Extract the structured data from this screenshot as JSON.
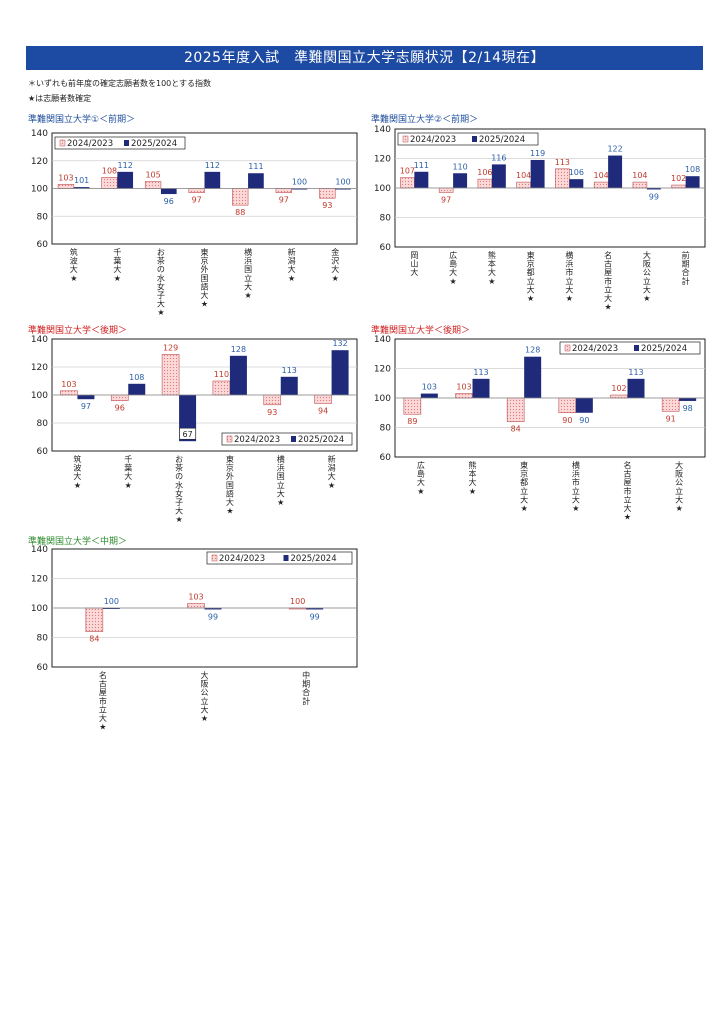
{
  "page": {
    "title": "2025年度入試　準難関国立大学志願状況【2/14現在】",
    "note1": "＊いずれも前年度の確定志願者数を100とする指数",
    "note2": "★は志願者数確定"
  },
  "colors": {
    "banner": "#1d4aa3",
    "series_2025": "#1f2a7a",
    "series_2024_fill": "#fbd9d9",
    "series_2024_dot": "#e07a7a",
    "label_2024": "#c0392b",
    "label_2025": "#2b5fa8",
    "title_blue": "#1f4e9c",
    "title_red": "#d02020",
    "title_green": "#2e8b2e"
  },
  "chart_data": [
    {
      "type": "bar",
      "title": "準難関国立大学①＜前期＞",
      "categories": [
        "筑波大★",
        "千葉大★",
        "お茶の水女子大★",
        "東京外国語大★",
        "横浜国立大★",
        "新潟大★",
        "金沢大★"
      ],
      "series": [
        {
          "name": "2024/2023",
          "values": [
            103,
            108,
            105,
            97,
            88,
            97,
            93
          ]
        },
        {
          "name": "2025/2024",
          "values": [
            101,
            112,
            96,
            112,
            111,
            100,
            100
          ]
        }
      ],
      "ylim": [
        60,
        140
      ],
      "yticks": [
        60,
        80,
        100,
        120,
        140
      ],
      "baseline": 100,
      "legend": "top-left"
    },
    {
      "type": "bar",
      "title": "準難関国立大学②＜前期＞",
      "categories": [
        "岡山大",
        "広島大★",
        "熊本大★",
        "東京都立大★",
        "横浜市立大★",
        "名古屋市立大★",
        "大阪公立大★",
        "前期合計"
      ],
      "series": [
        {
          "name": "2024/2023",
          "values": [
            107,
            97,
            106,
            104,
            113,
            104,
            104,
            102
          ]
        },
        {
          "name": "2025/2024",
          "values": [
            111,
            110,
            116,
            119,
            106,
            122,
            99,
            108
          ]
        }
      ],
      "ylim": [
        60,
        140
      ],
      "yticks": [
        60,
        80,
        100,
        120,
        140
      ],
      "baseline": 100,
      "legend": "top-left"
    },
    {
      "type": "bar",
      "title": "準難関国立大学＜後期＞",
      "categories": [
        "筑波大★",
        "千葉大★",
        "お茶の水女子大★",
        "東京外国語大★",
        "横浜国立大★",
        "新潟大★"
      ],
      "series": [
        {
          "name": "2024/2023",
          "values": [
            103,
            96,
            129,
            110,
            93,
            94
          ]
        },
        {
          "name": "2025/2024",
          "values": [
            97,
            108,
            67,
            128,
            113,
            132
          ]
        }
      ],
      "ylim": [
        60,
        140
      ],
      "yticks": [
        60,
        80,
        100,
        120,
        140
      ],
      "baseline": 100,
      "legend": "bottom-right"
    },
    {
      "type": "bar",
      "title": "準難関国立大学＜後期＞",
      "categories": [
        "広島大★",
        "熊本大★",
        "東京都立大★",
        "横浜市立大★",
        "名古屋市立大★",
        "大阪公立大★"
      ],
      "series": [
        {
          "name": "2024/2023",
          "values": [
            89,
            103,
            84,
            90,
            102,
            91
          ]
        },
        {
          "name": "2025/2024",
          "values": [
            103,
            113,
            128,
            90,
            113,
            98
          ]
        }
      ],
      "ylim": [
        60,
        140
      ],
      "yticks": [
        60,
        80,
        100,
        120,
        140
      ],
      "baseline": 100,
      "legend": "top-right"
    },
    {
      "type": "bar",
      "title": "準難関国立大学＜中期＞",
      "categories": [
        "名古屋市立大★",
        "大阪公立大★",
        "中期合計"
      ],
      "series": [
        {
          "name": "2024/2023",
          "values": [
            84,
            103,
            100
          ]
        },
        {
          "name": "2025/2024",
          "values": [
            100,
            99,
            99
          ]
        }
      ],
      "ylim": [
        60,
        140
      ],
      "yticks": [
        60,
        80,
        100,
        120,
        140
      ],
      "baseline": 100,
      "legend": "top-right"
    }
  ]
}
